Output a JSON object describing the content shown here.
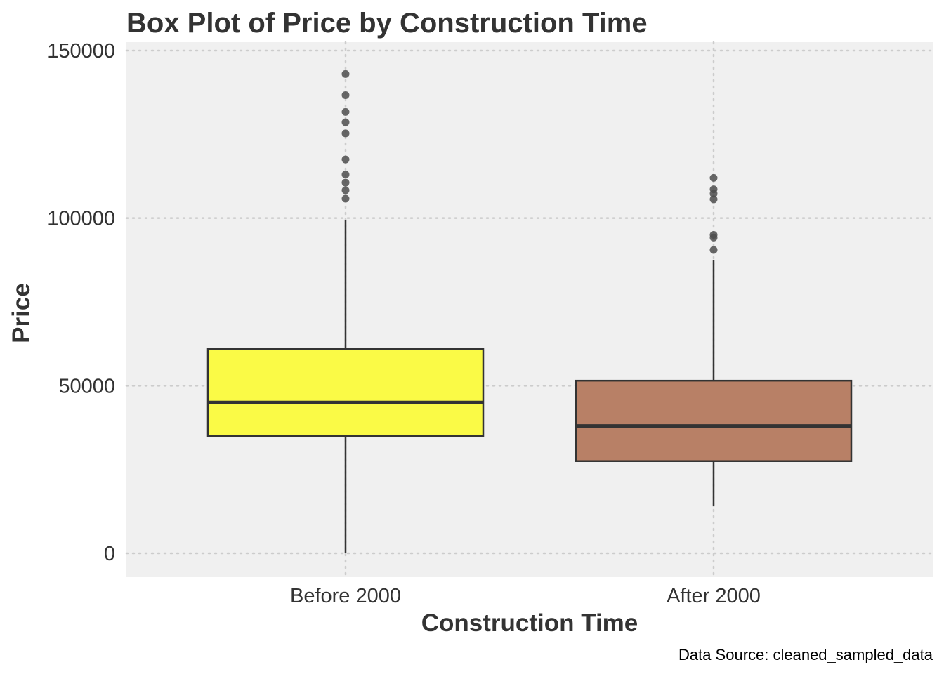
{
  "chart_data": {
    "type": "box",
    "title": "Box Plot of Price by Construction Time",
    "xlabel": "Construction Time",
    "ylabel": "Price",
    "caption": "Data Source: cleaned_sampled_data",
    "ylim": [
      -7000,
      150000
    ],
    "yticks": [
      0,
      50000,
      100000,
      150000
    ],
    "grid": true,
    "categories": [
      "Before 2000",
      "After 2000"
    ],
    "boxes": [
      {
        "category": "Before 2000",
        "color": "#fafa46",
        "whisker_low": 0,
        "q1": 35000,
        "median": 45000,
        "q3": 61000,
        "whisker_high": 99500,
        "outliers": [
          143000,
          136700,
          131700,
          128600,
          125300,
          117500,
          113000,
          110600,
          108300,
          105800
        ]
      },
      {
        "category": "After 2000",
        "color": "#b88066",
        "whisker_low": 14000,
        "q1": 27500,
        "median": 38000,
        "q3": 51500,
        "whisker_high": 87500,
        "outliers": [
          112000,
          108600,
          107300,
          105600,
          95000,
          94200,
          90500
        ]
      }
    ],
    "colors": {
      "panel": "#f0f0f0",
      "grid": "#cccccc",
      "outline": "#333333",
      "outlier": "#4d4d4d"
    }
  }
}
